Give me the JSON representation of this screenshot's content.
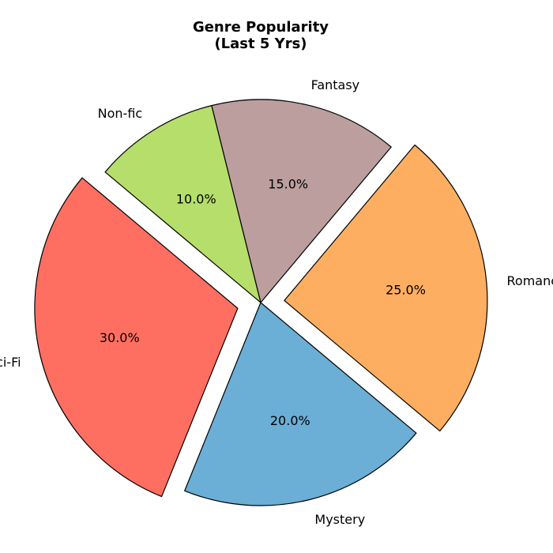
{
  "chart_data": {
    "type": "pie",
    "title": "Genre Popularity\n(Last 5 Yrs)",
    "categories": [
      "Sci-Fi",
      "Mystery",
      "Romance",
      "Fantasy",
      "Non-fic"
    ],
    "values": [
      30,
      20,
      25,
      15,
      10
    ],
    "value_labels": [
      "30.0%",
      "20.0%",
      "25.0%",
      "15.0%",
      "10.0%"
    ],
    "colors": [
      "#ff6f61",
      "#6baed6",
      "#fdae61",
      "#bc9e9e",
      "#b5de6b"
    ],
    "exploded": [
      true,
      false,
      true,
      false,
      false
    ],
    "start_angle_deg": 140,
    "direction": "counterclockwise",
    "legend": "none"
  }
}
